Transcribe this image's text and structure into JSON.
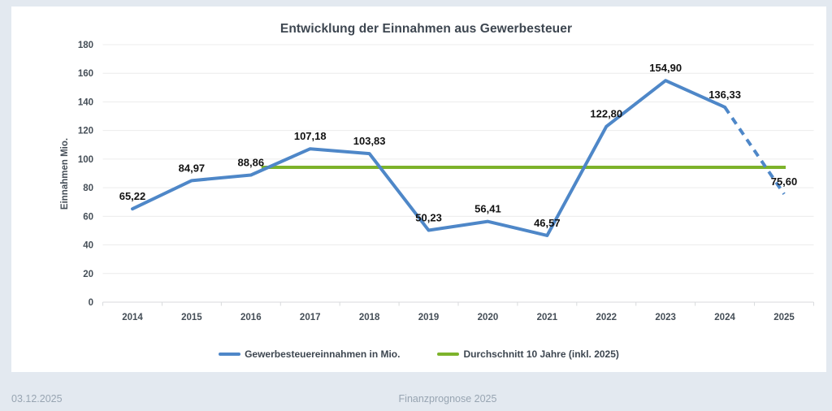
{
  "page": {
    "background": "#e3e9f0",
    "footer_date": "03.12.2025",
    "footer_center": "Finanzprognose 2025"
  },
  "chart_data": {
    "type": "line",
    "title": "Entwicklung der Einnahmen aus Gewerbesteuer",
    "xlabel": "",
    "ylabel": "Einnahmen Mio.",
    "ylim": [
      0,
      180
    ],
    "ytick_step": 20,
    "grid": true,
    "legend_position": "bottom",
    "categories": [
      "2014",
      "2015",
      "2016",
      "2017",
      "2018",
      "2019",
      "2020",
      "2021",
      "2022",
      "2023",
      "2024",
      "2025"
    ],
    "series": [
      {
        "name": "Gewerbesteuereinnahmen in Mio.",
        "type": "line",
        "color": "#4e87c8",
        "values": [
          65.22,
          84.97,
          88.86,
          107.18,
          103.83,
          50.23,
          56.41,
          46.57,
          122.8,
          154.9,
          136.33,
          75.6
        ],
        "point_labels": [
          "65,22",
          "84,97",
          "88,86",
          "107,18",
          "103,83",
          "50,23",
          "56,41",
          "46,57",
          "122,80",
          "154,90",
          "136,33",
          "75,60"
        ],
        "dashed_from_category": "2024"
      },
      {
        "name": "Durchschnitt 10 Jahre (inkl. 2025)",
        "type": "horizontal-average-line",
        "color": "#7db32b",
        "value": 94.27,
        "from_category": "2016",
        "to_category": "2025"
      }
    ],
    "colors": {
      "grid_line": "#ececec",
      "axis_line": "#d8dadc",
      "tick_label": "#454e57",
      "data_label": "#121212",
      "title": "#3d4650"
    }
  }
}
